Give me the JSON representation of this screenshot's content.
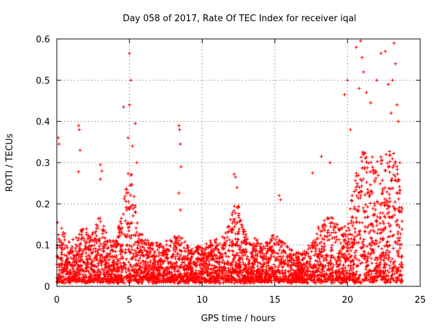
{
  "chart_data": {
    "type": "scatter",
    "title": "Day 058 of 2017, Rate Of TEC Index for receiver iqal",
    "xlabel": "GPS time / hours",
    "ylabel": "ROTI / TECUs",
    "xlim": [
      0,
      25
    ],
    "ylim": [
      0,
      0.6
    ],
    "xticks": [
      "0",
      "5",
      "10",
      "15",
      "20",
      "25"
    ],
    "xtick_values": [
      0,
      5,
      10,
      15,
      20,
      25
    ],
    "yticks": [
      "0",
      "0.1",
      "0.2",
      "0.3",
      "0.4",
      "0.5",
      "0.6"
    ],
    "ytick_values": [
      0,
      0.1,
      0.2,
      0.3,
      0.4,
      0.5,
      0.6
    ],
    "grid": true,
    "marker": "+",
    "color": "#ff0000",
    "x_data_range": [
      0,
      23.8
    ],
    "activity_envelope": {
      "x": [
        0.0,
        0.2,
        0.5,
        1.0,
        1.5,
        2.0,
        2.5,
        3.0,
        3.5,
        4.0,
        4.5,
        4.8,
        5.0,
        5.3,
        5.6,
        6.0,
        6.5,
        7.0,
        7.5,
        8.0,
        8.5,
        9.0,
        9.5,
        10.0,
        10.5,
        11.0,
        11.5,
        12.0,
        12.4,
        12.8,
        13.2,
        13.6,
        14.0,
        14.5,
        15.0,
        15.5,
        16.0,
        16.5,
        17.0,
        17.5,
        18.0,
        18.5,
        19.0,
        19.5,
        20.0,
        20.3,
        20.6,
        21.0,
        21.5,
        22.0,
        22.5,
        23.0,
        23.4,
        23.8
      ],
      "typical_max": [
        0.08,
        0.14,
        0.12,
        0.09,
        0.12,
        0.13,
        0.11,
        0.16,
        0.1,
        0.09,
        0.16,
        0.24,
        0.28,
        0.2,
        0.12,
        0.1,
        0.09,
        0.09,
        0.09,
        0.11,
        0.11,
        0.08,
        0.08,
        0.09,
        0.09,
        0.1,
        0.1,
        0.16,
        0.2,
        0.13,
        0.09,
        0.1,
        0.09,
        0.09,
        0.11,
        0.09,
        0.08,
        0.07,
        0.07,
        0.09,
        0.13,
        0.15,
        0.15,
        0.13,
        0.12,
        0.2,
        0.25,
        0.3,
        0.3,
        0.28,
        0.3,
        0.32,
        0.28,
        0.15
      ]
    },
    "notable_points": [
      {
        "x": 0.1,
        "y": 0.36
      },
      {
        "x": 0.15,
        "y": 0.345
      },
      {
        "x": 0.05,
        "y": 0.155
      },
      {
        "x": 1.5,
        "y": 0.39
      },
      {
        "x": 1.55,
        "y": 0.38
      },
      {
        "x": 1.6,
        "y": 0.33
      },
      {
        "x": 1.5,
        "y": 0.278
      },
      {
        "x": 3.0,
        "y": 0.295
      },
      {
        "x": 3.1,
        "y": 0.28
      },
      {
        "x": 3.0,
        "y": 0.26
      },
      {
        "x": 4.6,
        "y": 0.435
      },
      {
        "x": 5.0,
        "y": 0.565
      },
      {
        "x": 5.1,
        "y": 0.5
      },
      {
        "x": 5.0,
        "y": 0.44
      },
      {
        "x": 4.9,
        "y": 0.36
      },
      {
        "x": 5.4,
        "y": 0.395
      },
      {
        "x": 5.2,
        "y": 0.34
      },
      {
        "x": 5.5,
        "y": 0.3
      },
      {
        "x": 8.4,
        "y": 0.39
      },
      {
        "x": 8.45,
        "y": 0.38
      },
      {
        "x": 8.5,
        "y": 0.345
      },
      {
        "x": 8.55,
        "y": 0.29
      },
      {
        "x": 8.4,
        "y": 0.226
      },
      {
        "x": 8.5,
        "y": 0.185
      },
      {
        "x": 12.2,
        "y": 0.272
      },
      {
        "x": 12.3,
        "y": 0.265
      },
      {
        "x": 12.4,
        "y": 0.24
      },
      {
        "x": 15.3,
        "y": 0.22
      },
      {
        "x": 15.4,
        "y": 0.21
      },
      {
        "x": 17.6,
        "y": 0.275
      },
      {
        "x": 18.2,
        "y": 0.315
      },
      {
        "x": 18.8,
        "y": 0.3
      },
      {
        "x": 19.8,
        "y": 0.465
      },
      {
        "x": 20.0,
        "y": 0.5
      },
      {
        "x": 20.2,
        "y": 0.38
      },
      {
        "x": 20.6,
        "y": 0.58
      },
      {
        "x": 20.9,
        "y": 0.595
      },
      {
        "x": 21.0,
        "y": 0.555
      },
      {
        "x": 21.1,
        "y": 0.52
      },
      {
        "x": 20.8,
        "y": 0.48
      },
      {
        "x": 21.3,
        "y": 0.47
      },
      {
        "x": 21.6,
        "y": 0.445
      },
      {
        "x": 22.0,
        "y": 0.5
      },
      {
        "x": 22.3,
        "y": 0.565
      },
      {
        "x": 22.6,
        "y": 0.57
      },
      {
        "x": 22.8,
        "y": 0.49
      },
      {
        "x": 23.0,
        "y": 0.42
      },
      {
        "x": 23.2,
        "y": 0.59
      },
      {
        "x": 23.3,
        "y": 0.54
      },
      {
        "x": 23.1,
        "y": 0.5
      },
      {
        "x": 23.4,
        "y": 0.44
      },
      {
        "x": 23.5,
        "y": 0.4
      },
      {
        "x": 23.6,
        "y": 0.3
      }
    ]
  }
}
